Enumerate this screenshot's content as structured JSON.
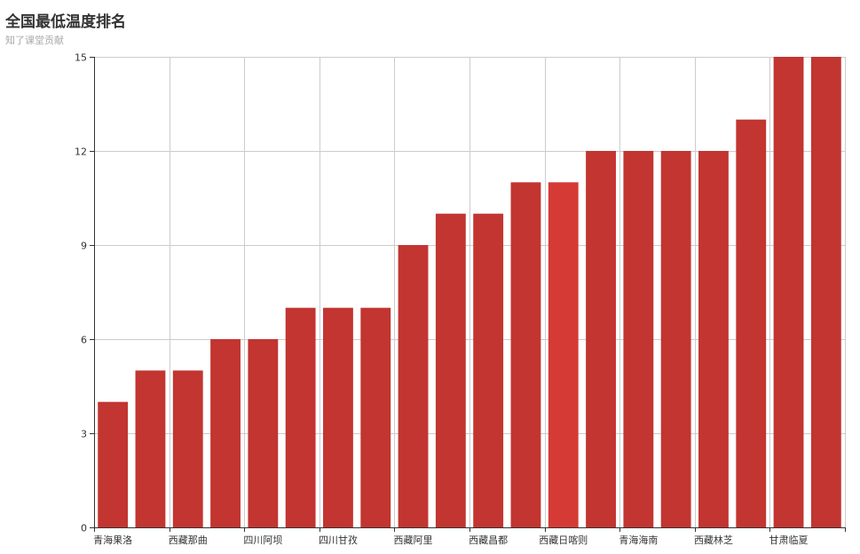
{
  "chart_data": {
    "type": "bar",
    "title": "全国最低温度排名",
    "subtitle": "知了课堂贡献",
    "categories": [
      "青海果洛",
      "",
      "西藏那曲",
      "",
      "四川阿坝",
      "",
      "四川甘孜",
      "",
      "西藏阿里",
      "",
      "西藏昌都",
      "",
      "西藏日喀则",
      "",
      "青海海南",
      "",
      "西藏林芝",
      "",
      "甘肃临夏",
      ""
    ],
    "values": [
      4,
      5,
      5,
      6,
      6,
      7,
      7,
      7,
      9,
      10,
      10,
      11,
      11,
      12,
      12,
      12,
      12,
      13,
      15,
      15
    ],
    "ylim": [
      0,
      15
    ],
    "yticks": [
      "0",
      "3",
      "6",
      "9",
      "12",
      "15"
    ],
    "grid": true,
    "colors": {
      "bar": "#c23531",
      "bar_highlight": "#d63a35"
    },
    "highlight_index": 12
  }
}
